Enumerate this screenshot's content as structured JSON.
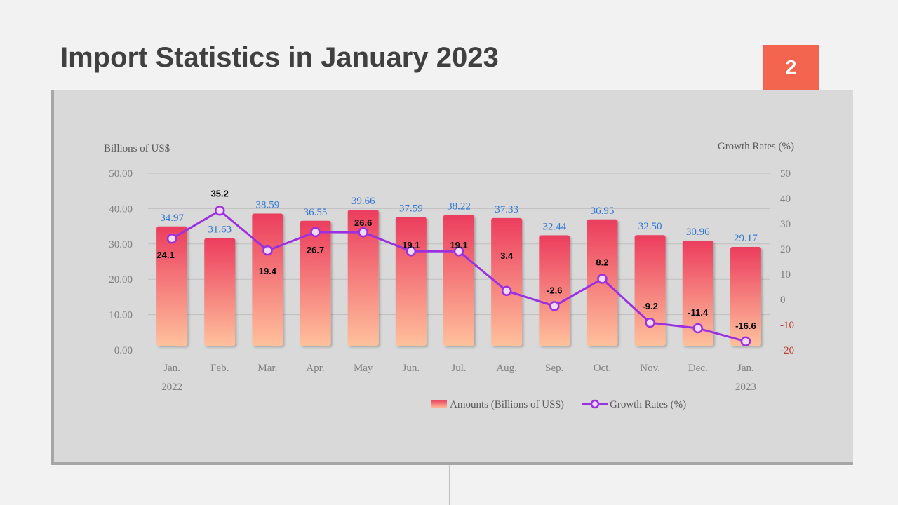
{
  "slide": {
    "title": "Import Statistics in January 2023",
    "page_number": "2"
  },
  "colors": {
    "badge": "#f4654f",
    "bar_top": "#ec3d5e",
    "bar_bottom": "#ffc19c",
    "line": "#9b30e0",
    "bar_label": "#2e75d6",
    "negative_axis": "#c0392b"
  },
  "chart_data": {
    "type": "bar",
    "categories": [
      "Jan.\n2022",
      "Feb.",
      "Mar.",
      "Apr.",
      "May",
      "Jun.",
      "Jul.",
      "Aug.",
      "Sep.",
      "Oct.",
      "Nov.",
      "Dec.",
      "Jan.\n2023"
    ],
    "series": [
      {
        "name": "Amounts (Billions of US$)",
        "type": "bar",
        "axis": "left",
        "values": [
          34.97,
          31.63,
          38.59,
          36.55,
          39.66,
          37.59,
          38.22,
          37.33,
          32.44,
          36.95,
          32.5,
          30.96,
          29.17
        ],
        "labels": [
          "34.97",
          "31.63",
          "38.59",
          "36.55",
          "39.66",
          "37.59",
          "38.22",
          "37.33",
          "32.44",
          "36.95",
          "32.50",
          "30.96",
          "29.17"
        ]
      },
      {
        "name": "Growth Rates (%)",
        "type": "line",
        "axis": "right",
        "values": [
          24.1,
          35.2,
          19.4,
          26.7,
          26.6,
          19.1,
          19.1,
          3.4,
          -2.6,
          8.2,
          -9.2,
          -11.4,
          -16.6
        ]
      }
    ],
    "y_left": {
      "label": "Billions of US$",
      "ticks": [
        "50.00",
        "40.00",
        "30.00",
        "20.00",
        "10.00",
        "0.00"
      ],
      "range": [
        0,
        50
      ]
    },
    "y_right": {
      "label": "Growth Rates (%)",
      "ticks": [
        "50",
        "40",
        "30",
        "20",
        "10",
        "0",
        "-10",
        "-20"
      ],
      "range": [
        -20,
        50
      ]
    },
    "grid": "horizontal",
    "legend": "bottom"
  }
}
